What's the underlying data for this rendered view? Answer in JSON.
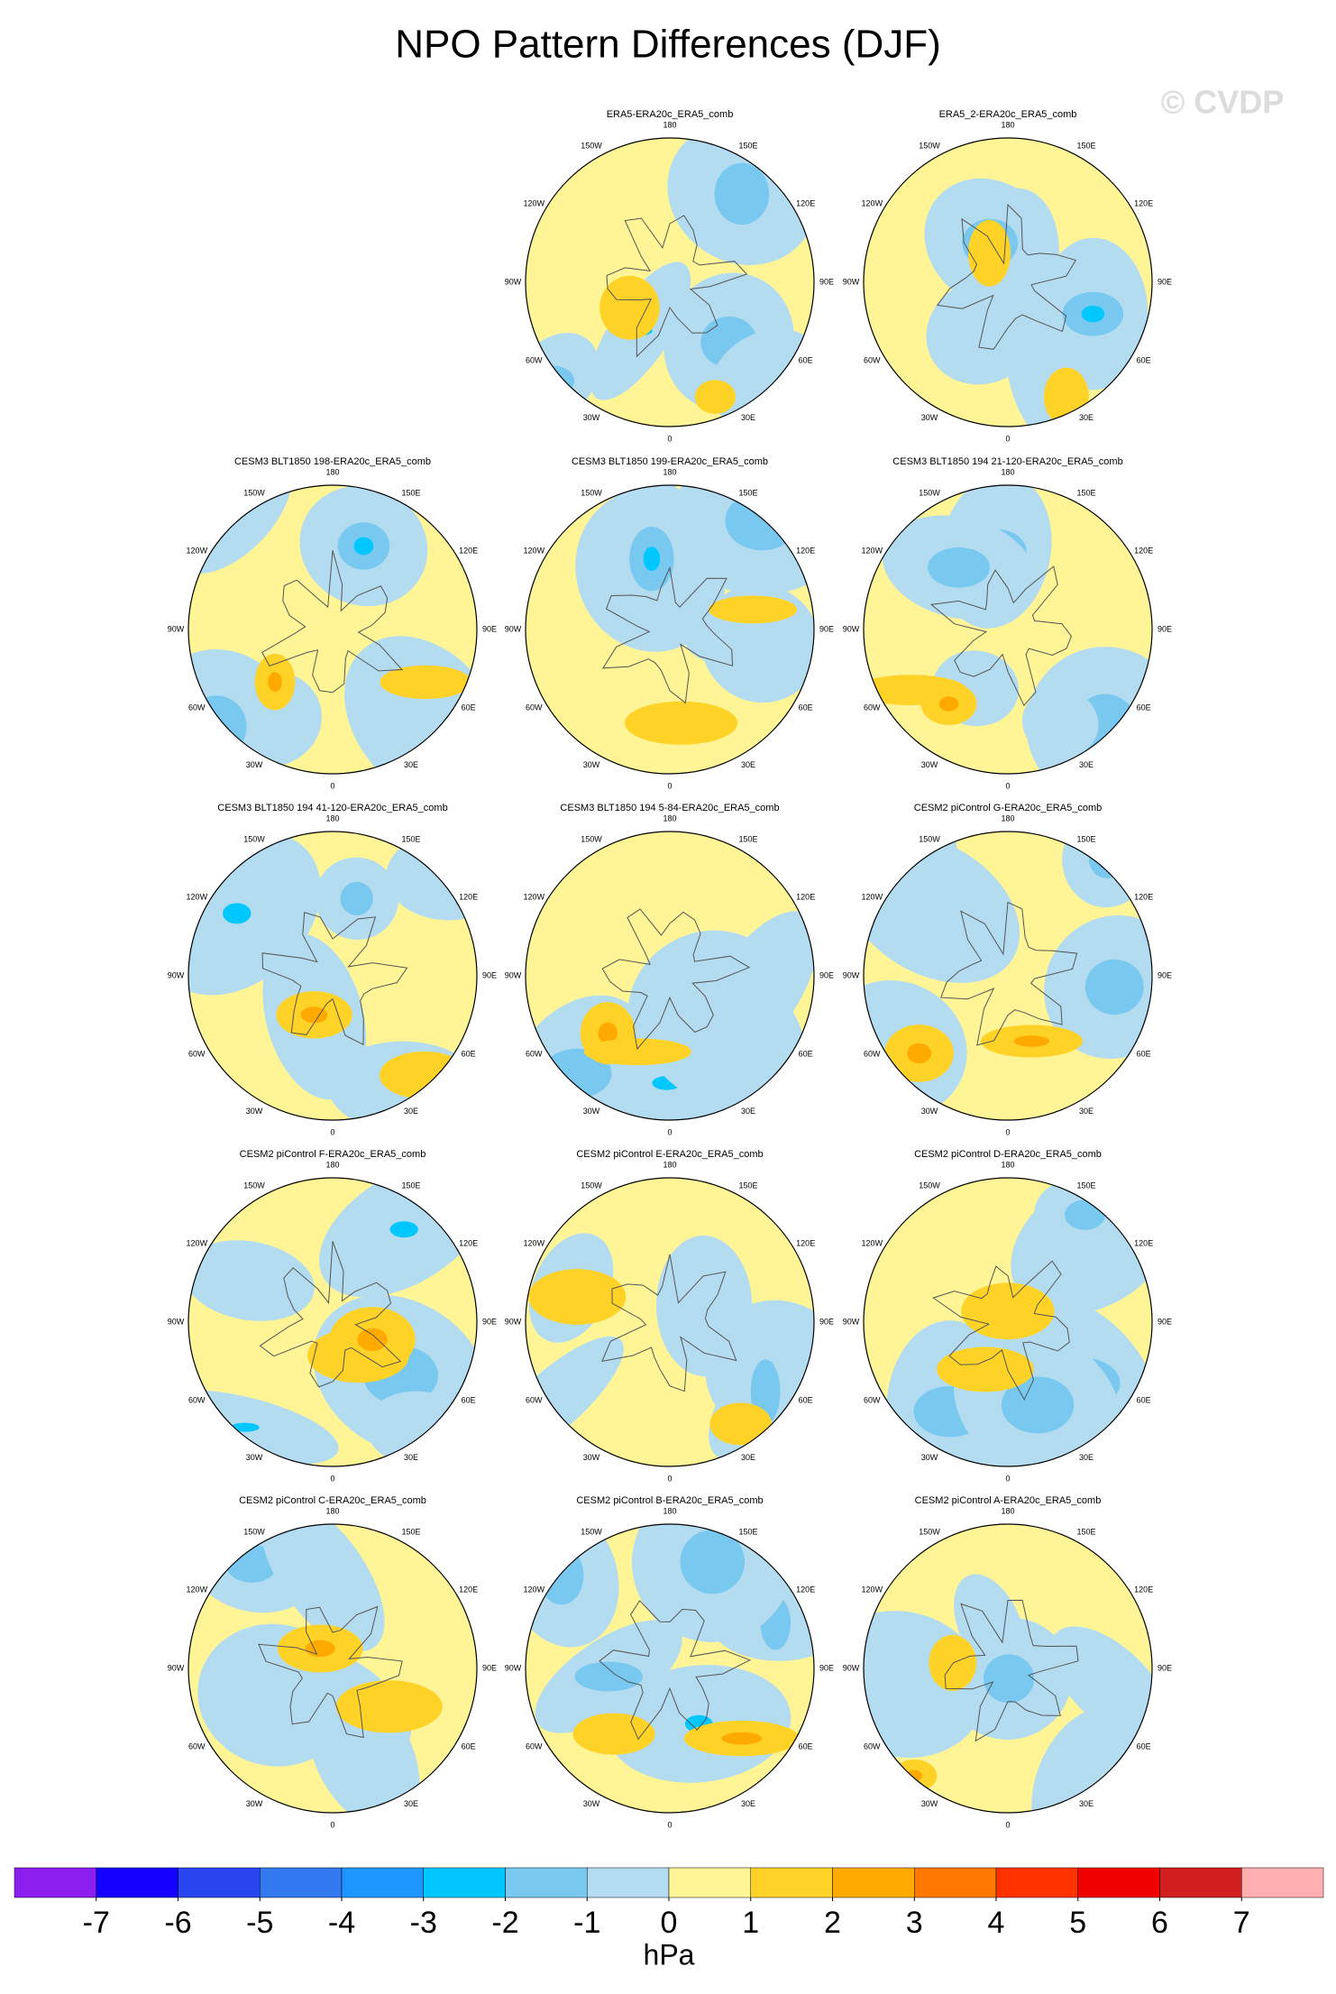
{
  "title": "NPO Pattern Differences (DJF)",
  "watermark": "© CVDP",
  "longitude_labels": [
    {
      "lon": 180,
      "label": "180"
    },
    {
      "lon": -150,
      "label": "150W"
    },
    {
      "lon": 150,
      "label": "150E"
    },
    {
      "lon": -120,
      "label": "120W"
    },
    {
      "lon": 120,
      "label": "120E"
    },
    {
      "lon": -90,
      "label": "90W"
    },
    {
      "lon": 90,
      "label": "90E"
    },
    {
      "lon": -60,
      "label": "60W"
    },
    {
      "lon": 60,
      "label": "60E"
    },
    {
      "lon": -30,
      "label": "30W"
    },
    {
      "lon": 30,
      "label": "30E"
    },
    {
      "lon": 0,
      "label": "0"
    }
  ],
  "panels": [
    {
      "title": "ERA5-ERA20c_ERA5_comb"
    },
    {
      "title": "ERA5_2-ERA20c_ERA5_comb"
    },
    {
      "title": "CESM3 BLT1850 198-ERA20c_ERA5_comb"
    },
    {
      "title": "CESM3 BLT1850 199-ERA20c_ERA5_comb"
    },
    {
      "title": "CESM3 BLT1850 194 21-120-ERA20c_ERA5_comb"
    },
    {
      "title": "CESM3 BLT1850 194 41-120-ERA20c_ERA5_comb"
    },
    {
      "title": "CESM3 BLT1850 194 5-84-ERA20c_ERA5_comb"
    },
    {
      "title": "CESM2 piControl G-ERA20c_ERA5_comb"
    },
    {
      "title": "CESM2 piControl F-ERA20c_ERA5_comb"
    },
    {
      "title": "CESM2 piControl E-ERA20c_ERA5_comb"
    },
    {
      "title": "CESM2 piControl D-ERA20c_ERA5_comb"
    },
    {
      "title": "CESM2 piControl C-ERA20c_ERA5_comb"
    },
    {
      "title": "CESM2 piControl B-ERA20c_ERA5_comb"
    },
    {
      "title": "CESM2 piControl A-ERA20c_ERA5_comb"
    }
  ],
  "colorbar": {
    "levels": [
      -7,
      -6,
      -5,
      -4,
      -3,
      -2,
      -1,
      0,
      1,
      2,
      3,
      4,
      5,
      6,
      7
    ],
    "colors": [
      "#8c1ef0",
      "#1400ff",
      "#2846f0",
      "#3278f0",
      "#1e96ff",
      "#00c8ff",
      "#78c8f0",
      "#b4dcf0",
      "#fff596",
      "#ffd228",
      "#ffaa00",
      "#ff7800",
      "#ff3200",
      "#f00000",
      "#d21e1e",
      "#ffafaf"
    ],
    "label": "hPa"
  }
}
